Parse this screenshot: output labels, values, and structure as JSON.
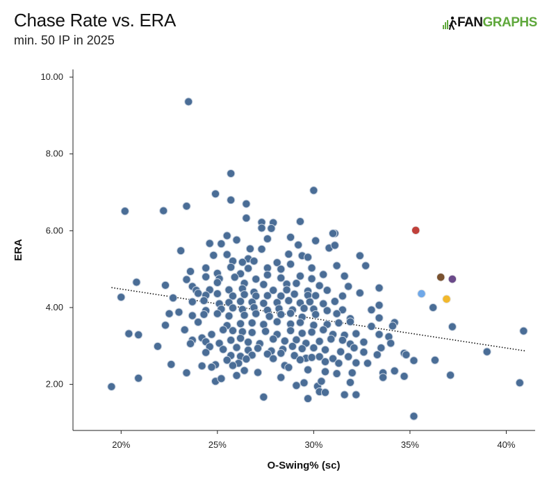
{
  "header": {
    "title": "Chase Rate vs. ERA",
    "subtitle": "min. 50 IP in 2025"
  },
  "logo": {
    "text_dark": "FAN",
    "text_green": "GRAPHS"
  },
  "colors": {
    "point": "#4a6d96",
    "point_stroke": "#c9d3e0",
    "trend": "#111111",
    "axis": "#222222",
    "logo_green": "#5fa83c"
  },
  "chart_data": {
    "type": "scatter",
    "title": "Chase Rate vs. ERA",
    "subtitle": "min. 50 IP in 2025",
    "xlabel": "O-Swing% (sc)",
    "ylabel": "ERA",
    "xlim": [
      0.175,
      0.415
    ],
    "ylim": [
      0.8,
      10.2
    ],
    "x_ticks": [
      0.2,
      0.25,
      0.3,
      0.35,
      0.4
    ],
    "x_tick_labels": [
      "20%",
      "25%",
      "30%",
      "35%",
      "40%"
    ],
    "y_ticks": [
      2,
      4,
      6,
      8,
      10
    ],
    "y_tick_labels": [
      "2.00",
      "4.00",
      "6.00",
      "8.00",
      "10.00"
    ],
    "grid": false,
    "trendline": {
      "style": "dotted",
      "x": [
        0.195,
        0.41
      ],
      "y": [
        4.52,
        2.87
      ]
    },
    "highlighted": [
      {
        "x": 0.353,
        "y": 6.01,
        "color": "#c0403a"
      },
      {
        "x": 0.366,
        "y": 4.79,
        "color": "#7a5230"
      },
      {
        "x": 0.372,
        "y": 4.74,
        "color": "#6b4a8a"
      },
      {
        "x": 0.356,
        "y": 4.36,
        "color": "#6fa8e8"
      },
      {
        "x": 0.369,
        "y": 4.22,
        "color": "#f2b82c"
      }
    ],
    "points": [
      [
        0.235,
        9.36
      ],
      [
        0.3,
        7.05
      ],
      [
        0.257,
        7.49
      ],
      [
        0.249,
        6.96
      ],
      [
        0.257,
        6.8
      ],
      [
        0.265,
        6.7
      ],
      [
        0.234,
        6.64
      ],
      [
        0.202,
        6.51
      ],
      [
        0.222,
        6.52
      ],
      [
        0.265,
        6.33
      ],
      [
        0.273,
        6.22
      ],
      [
        0.279,
        6.21
      ],
      [
        0.293,
        6.24
      ],
      [
        0.278,
        6.06
      ],
      [
        0.273,
        6.07
      ],
      [
        0.311,
        5.93
      ],
      [
        0.31,
        5.93
      ],
      [
        0.255,
        5.87
      ],
      [
        0.26,
        5.76
      ],
      [
        0.276,
        5.79
      ],
      [
        0.288,
        5.83
      ],
      [
        0.301,
        5.74
      ],
      [
        0.292,
        5.63
      ],
      [
        0.246,
        5.67
      ],
      [
        0.252,
        5.66
      ],
      [
        0.267,
        5.53
      ],
      [
        0.273,
        5.52
      ],
      [
        0.308,
        5.55
      ],
      [
        0.311,
        5.62
      ],
      [
        0.324,
        5.35
      ],
      [
        0.231,
        5.48
      ],
      [
        0.248,
        5.36
      ],
      [
        0.255,
        5.38
      ],
      [
        0.266,
        5.27
      ],
      [
        0.287,
        5.39
      ],
      [
        0.294,
        5.35
      ],
      [
        0.297,
        5.31
      ],
      [
        0.258,
        5.21
      ],
      [
        0.263,
        5.18
      ],
      [
        0.269,
        5.21
      ],
      [
        0.281,
        5.17
      ],
      [
        0.288,
        5.13
      ],
      [
        0.312,
        5.09
      ],
      [
        0.327,
        5.09
      ],
      [
        0.244,
        5.03
      ],
      [
        0.257,
        5.05
      ],
      [
        0.266,
        5.02
      ],
      [
        0.276,
        5.03
      ],
      [
        0.283,
        5.0
      ],
      [
        0.299,
        5.03
      ],
      [
        0.236,
        4.94
      ],
      [
        0.25,
        4.89
      ],
      [
        0.262,
        4.88
      ],
      [
        0.276,
        4.85
      ],
      [
        0.293,
        4.82
      ],
      [
        0.305,
        4.86
      ],
      [
        0.316,
        4.82
      ],
      [
        0.208,
        4.66
      ],
      [
        0.234,
        4.73
      ],
      [
        0.244,
        4.8
      ],
      [
        0.251,
        4.75
      ],
      [
        0.259,
        4.79
      ],
      [
        0.27,
        4.74
      ],
      [
        0.283,
        4.77
      ],
      [
        0.299,
        4.75
      ],
      [
        0.223,
        4.58
      ],
      [
        0.237,
        4.55
      ],
      [
        0.25,
        4.65
      ],
      [
        0.264,
        4.63
      ],
      [
        0.274,
        4.6
      ],
      [
        0.286,
        4.61
      ],
      [
        0.291,
        4.63
      ],
      [
        0.303,
        4.57
      ],
      [
        0.318,
        4.55
      ],
      [
        0.334,
        4.51
      ],
      [
        0.239,
        4.45
      ],
      [
        0.246,
        4.46
      ],
      [
        0.256,
        4.46
      ],
      [
        0.263,
        4.49
      ],
      [
        0.269,
        4.4
      ],
      [
        0.279,
        4.45
      ],
      [
        0.286,
        4.46
      ],
      [
        0.297,
        4.43
      ],
      [
        0.307,
        4.45
      ],
      [
        0.2,
        4.27
      ],
      [
        0.227,
        4.25
      ],
      [
        0.24,
        4.37
      ],
      [
        0.244,
        4.32
      ],
      [
        0.25,
        4.36
      ],
      [
        0.258,
        4.3
      ],
      [
        0.264,
        4.34
      ],
      [
        0.27,
        4.3
      ],
      [
        0.276,
        4.31
      ],
      [
        0.283,
        4.3
      ],
      [
        0.29,
        4.35
      ],
      [
        0.297,
        4.32
      ],
      [
        0.301,
        4.31
      ],
      [
        0.315,
        4.3
      ],
      [
        0.324,
        4.38
      ],
      [
        0.237,
        4.15
      ],
      [
        0.243,
        4.18
      ],
      [
        0.251,
        4.1
      ],
      [
        0.256,
        4.13
      ],
      [
        0.262,
        4.16
      ],
      [
        0.268,
        4.14
      ],
      [
        0.274,
        4.11
      ],
      [
        0.281,
        4.13
      ],
      [
        0.287,
        4.18
      ],
      [
        0.293,
        4.12
      ],
      [
        0.298,
        4.15
      ],
      [
        0.305,
        4.1
      ],
      [
        0.311,
        4.16
      ],
      [
        0.334,
        4.06
      ],
      [
        0.362,
        4.0
      ],
      [
        0.225,
        3.84
      ],
      [
        0.23,
        3.88
      ],
      [
        0.244,
        3.92
      ],
      [
        0.252,
        3.96
      ],
      [
        0.258,
        3.99
      ],
      [
        0.263,
        3.95
      ],
      [
        0.269,
        4.0
      ],
      [
        0.276,
        3.93
      ],
      [
        0.282,
        3.97
      ],
      [
        0.289,
        3.94
      ],
      [
        0.295,
        3.98
      ],
      [
        0.3,
        3.96
      ],
      [
        0.307,
        3.92
      ],
      [
        0.315,
        3.94
      ],
      [
        0.33,
        3.94
      ],
      [
        0.237,
        3.79
      ],
      [
        0.243,
        3.82
      ],
      [
        0.25,
        3.84
      ],
      [
        0.256,
        3.78
      ],
      [
        0.264,
        3.8
      ],
      [
        0.27,
        3.84
      ],
      [
        0.277,
        3.77
      ],
      [
        0.283,
        3.82
      ],
      [
        0.288,
        3.85
      ],
      [
        0.294,
        3.75
      ],
      [
        0.301,
        3.82
      ],
      [
        0.312,
        3.84
      ],
      [
        0.319,
        3.71
      ],
      [
        0.334,
        3.73
      ],
      [
        0.342,
        3.61
      ],
      [
        0.223,
        3.54
      ],
      [
        0.24,
        3.62
      ],
      [
        0.255,
        3.53
      ],
      [
        0.262,
        3.58
      ],
      [
        0.268,
        3.6
      ],
      [
        0.274,
        3.56
      ],
      [
        0.281,
        3.63
      ],
      [
        0.288,
        3.57
      ],
      [
        0.293,
        3.61
      ],
      [
        0.3,
        3.54
      ],
      [
        0.307,
        3.56
      ],
      [
        0.313,
        3.6
      ],
      [
        0.319,
        3.63
      ],
      [
        0.33,
        3.51
      ],
      [
        0.341,
        3.52
      ],
      [
        0.372,
        3.5
      ],
      [
        0.409,
        3.39
      ],
      [
        0.204,
        3.32
      ],
      [
        0.209,
        3.29
      ],
      [
        0.233,
        3.42
      ],
      [
        0.242,
        3.21
      ],
      [
        0.247,
        3.3
      ],
      [
        0.253,
        3.42
      ],
      [
        0.258,
        3.4
      ],
      [
        0.263,
        3.37
      ],
      [
        0.268,
        3.35
      ],
      [
        0.275,
        3.38
      ],
      [
        0.281,
        3.3
      ],
      [
        0.288,
        3.4
      ],
      [
        0.294,
        3.33
      ],
      [
        0.299,
        3.36
      ],
      [
        0.305,
        3.42
      ],
      [
        0.31,
        3.3
      ],
      [
        0.316,
        3.28
      ],
      [
        0.322,
        3.32
      ],
      [
        0.334,
        3.3
      ],
      [
        0.339,
        3.24
      ],
      [
        0.237,
        3.15
      ],
      [
        0.244,
        3.11
      ],
      [
        0.251,
        3.07
      ],
      [
        0.257,
        3.15
      ],
      [
        0.262,
        3.2
      ],
      [
        0.266,
        3.1
      ],
      [
        0.272,
        3.06
      ],
      [
        0.279,
        3.18
      ],
      [
        0.285,
        3.13
      ],
      [
        0.291,
        3.16
      ],
      [
        0.296,
        3.07
      ],
      [
        0.303,
        3.12
      ],
      [
        0.309,
        3.18
      ],
      [
        0.315,
        3.15
      ],
      [
        0.319,
        3.05
      ],
      [
        0.326,
        3.1
      ],
      [
        0.34,
        3.07
      ],
      [
        0.219,
        2.99
      ],
      [
        0.236,
        3.06
      ],
      [
        0.246,
        2.98
      ],
      [
        0.253,
        2.91
      ],
      [
        0.26,
        2.96
      ],
      [
        0.266,
        2.89
      ],
      [
        0.271,
        2.94
      ],
      [
        0.278,
        2.87
      ],
      [
        0.284,
        2.91
      ],
      [
        0.289,
        2.99
      ],
      [
        0.294,
        2.93
      ],
      [
        0.3,
        2.95
      ],
      [
        0.306,
        2.9
      ],
      [
        0.314,
        2.85
      ],
      [
        0.321,
        2.95
      ],
      [
        0.326,
        2.84
      ],
      [
        0.335,
        2.95
      ],
      [
        0.347,
        2.81
      ],
      [
        0.39,
        2.85
      ],
      [
        0.244,
        2.83
      ],
      [
        0.257,
        2.75
      ],
      [
        0.262,
        2.73
      ],
      [
        0.268,
        2.76
      ],
      [
        0.276,
        2.79
      ],
      [
        0.283,
        2.81
      ],
      [
        0.29,
        2.75
      ],
      [
        0.296,
        2.68
      ],
      [
        0.303,
        2.72
      ],
      [
        0.31,
        2.67
      ],
      [
        0.318,
        2.72
      ],
      [
        0.333,
        2.77
      ],
      [
        0.348,
        2.77
      ],
      [
        0.226,
        2.52
      ],
      [
        0.242,
        2.48
      ],
      [
        0.249,
        2.51
      ],
      [
        0.255,
        2.63
      ],
      [
        0.261,
        2.55
      ],
      [
        0.265,
        2.66
      ],
      [
        0.279,
        2.67
      ],
      [
        0.285,
        2.49
      ],
      [
        0.293,
        2.64
      ],
      [
        0.299,
        2.7
      ],
      [
        0.306,
        2.59
      ],
      [
        0.313,
        2.55
      ],
      [
        0.322,
        2.56
      ],
      [
        0.328,
        2.55
      ],
      [
        0.352,
        2.62
      ],
      [
        0.363,
        2.63
      ],
      [
        0.234,
        2.3
      ],
      [
        0.247,
        2.45
      ],
      [
        0.258,
        2.49
      ],
      [
        0.264,
        2.36
      ],
      [
        0.271,
        2.31
      ],
      [
        0.287,
        2.44
      ],
      [
        0.297,
        2.38
      ],
      [
        0.306,
        2.33
      ],
      [
        0.312,
        2.28
      ],
      [
        0.32,
        2.3
      ],
      [
        0.336,
        2.3
      ],
      [
        0.342,
        2.35
      ],
      [
        0.347,
        2.21
      ],
      [
        0.371,
        2.24
      ],
      [
        0.209,
        2.16
      ],
      [
        0.249,
        2.08
      ],
      [
        0.252,
        2.15
      ],
      [
        0.26,
        2.23
      ],
      [
        0.283,
        2.18
      ],
      [
        0.295,
        2.04
      ],
      [
        0.302,
        1.95
      ],
      [
        0.304,
        2.08
      ],
      [
        0.319,
        2.05
      ],
      [
        0.336,
        2.18
      ],
      [
        0.407,
        2.04
      ],
      [
        0.195,
        1.94
      ],
      [
        0.291,
        1.97
      ],
      [
        0.303,
        1.81
      ],
      [
        0.306,
        1.79
      ],
      [
        0.316,
        1.73
      ],
      [
        0.322,
        1.73
      ],
      [
        0.274,
        1.67
      ],
      [
        0.297,
        1.63
      ],
      [
        0.352,
        1.17
      ]
    ]
  }
}
